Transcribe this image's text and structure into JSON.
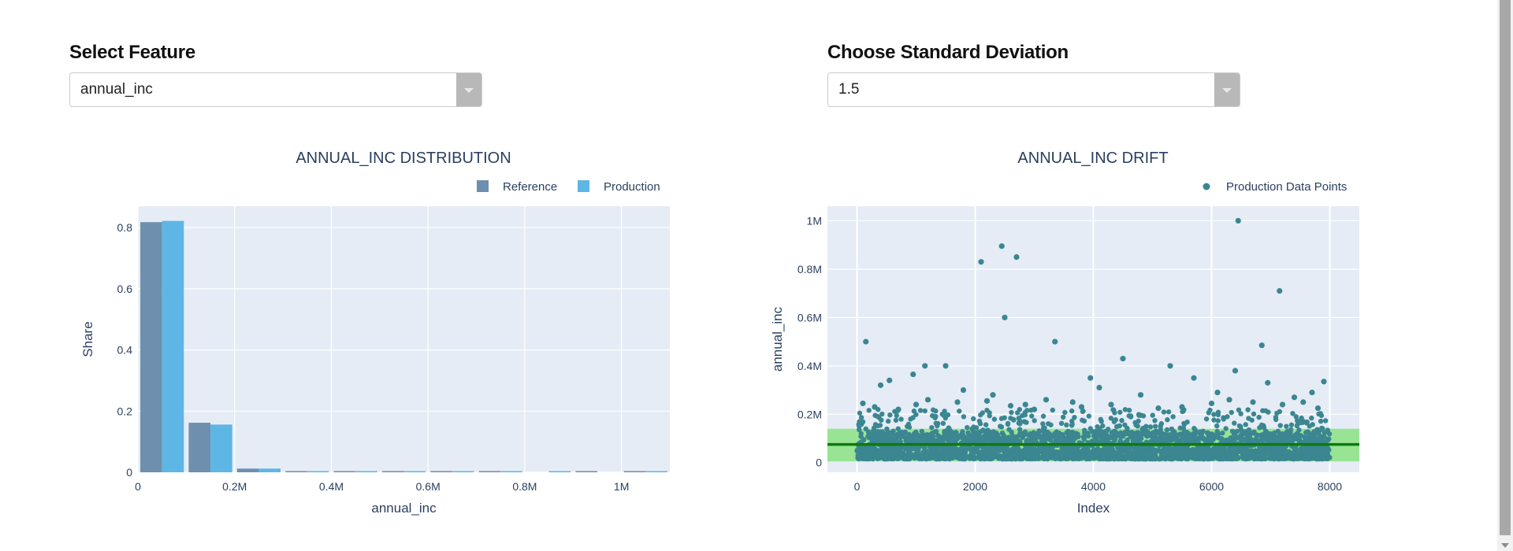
{
  "controls": {
    "feature": {
      "label": "Select Feature",
      "value": "annual_inc"
    },
    "std": {
      "label": "Choose Standard Deviation",
      "value": "1.5"
    }
  },
  "colors": {
    "reference": "#6e8fae",
    "production": "#5eb6e4",
    "points": "#3b8691",
    "band": "#90e38a",
    "mean_line": "#0d7a0d",
    "plot_bg": "#e5ecf6",
    "text": "#2a3f5f"
  },
  "chart_data": [
    {
      "type": "bar",
      "title": "ANNUAL_INC DISTRIBUTION",
      "xlabel": "annual_inc",
      "ylabel": "Share",
      "legend_position": "top-right",
      "grid": true,
      "x_tick_labels": [
        "0",
        "0.2M",
        "0.4M",
        "0.6M",
        "0.8M",
        "1M"
      ],
      "x_ticks": [
        0,
        200000,
        400000,
        600000,
        800000,
        1000000
      ],
      "y_tick_labels": [
        "0",
        "0.2",
        "0.4",
        "0.6",
        "0.8"
      ],
      "y_ticks": [
        0,
        0.2,
        0.4,
        0.6,
        0.8
      ],
      "xlim": [
        0,
        1100000
      ],
      "ylim": [
        0,
        0.87
      ],
      "bin_width": 100000,
      "bin_starts": [
        0,
        100000,
        200000,
        300000,
        400000,
        500000,
        600000,
        700000,
        800000,
        900000,
        1000000
      ],
      "series": [
        {
          "name": "Reference",
          "values": [
            0.818,
            0.162,
            0.012,
            0.003,
            0.002,
            0.001,
            0.001,
            0.001,
            0.0,
            0.001,
            0.001
          ]
        },
        {
          "name": "Production",
          "values": [
            0.822,
            0.156,
            0.012,
            0.002,
            0.002,
            0.001,
            0.001,
            0.001,
            0.001,
            0.0,
            0.001
          ]
        }
      ]
    },
    {
      "type": "scatter",
      "title": "ANNUAL_INC DRIFT",
      "xlabel": "Index",
      "ylabel": "annual_inc",
      "legend_position": "top-right",
      "grid": true,
      "x_tick_labels": [
        "0",
        "2000",
        "4000",
        "6000",
        "8000"
      ],
      "x_ticks": [
        0,
        2000,
        4000,
        6000,
        8000
      ],
      "y_tick_labels": [
        "0",
        "0.2M",
        "0.4M",
        "0.6M",
        "0.8M",
        "1M"
      ],
      "y_ticks": [
        0,
        200000,
        400000,
        600000,
        800000,
        1000000
      ],
      "xlim": [
        -500,
        8500
      ],
      "ylim": [
        -40000,
        1060000
      ],
      "mean": 75000,
      "band": [
        5000,
        140000
      ],
      "series": [
        {
          "name": "Production Data Points",
          "bulk": {
            "index_range": [
              0,
              8000
            ],
            "value_range": [
              15000,
              130000
            ]
          },
          "points": [
            [
              150,
              500000
            ],
            [
              400,
              320000
            ],
            [
              550,
              340000
            ],
            [
              950,
              365000
            ],
            [
              1150,
              400000
            ],
            [
              1200,
              260000
            ],
            [
              1500,
              400000
            ],
            [
              1800,
              300000
            ],
            [
              2100,
              830000
            ],
            [
              2300,
              280000
            ],
            [
              2450,
              895000
            ],
            [
              2500,
              600000
            ],
            [
              2700,
              850000
            ],
            [
              2850,
              240000
            ],
            [
              3200,
              260000
            ],
            [
              3350,
              500000
            ],
            [
              3650,
              250000
            ],
            [
              3950,
              350000
            ],
            [
              4100,
              310000
            ],
            [
              4500,
              430000
            ],
            [
              4800,
              280000
            ],
            [
              5300,
              400000
            ],
            [
              5700,
              350000
            ],
            [
              6100,
              290000
            ],
            [
              6400,
              380000
            ],
            [
              6450,
              1000000
            ],
            [
              6700,
              250000
            ],
            [
              6850,
              485000
            ],
            [
              6950,
              330000
            ],
            [
              7150,
              710000
            ],
            [
              7400,
              270000
            ],
            [
              7700,
              290000
            ],
            [
              7900,
              335000
            ],
            [
              300,
              230000
            ],
            [
              700,
              220000
            ],
            [
              1000,
              240000
            ],
            [
              1700,
              250000
            ],
            [
              2600,
              235000
            ],
            [
              3000,
              220000
            ],
            [
              3800,
              230000
            ],
            [
              4300,
              240000
            ],
            [
              5100,
              225000
            ],
            [
              5500,
              230000
            ],
            [
              6000,
              245000
            ],
            [
              6300,
              260000
            ],
            [
              7200,
              240000
            ],
            [
              7550,
              250000
            ],
            [
              7800,
              225000
            ],
            [
              100,
              245000
            ],
            [
              2200,
              255000
            ]
          ]
        }
      ]
    }
  ]
}
